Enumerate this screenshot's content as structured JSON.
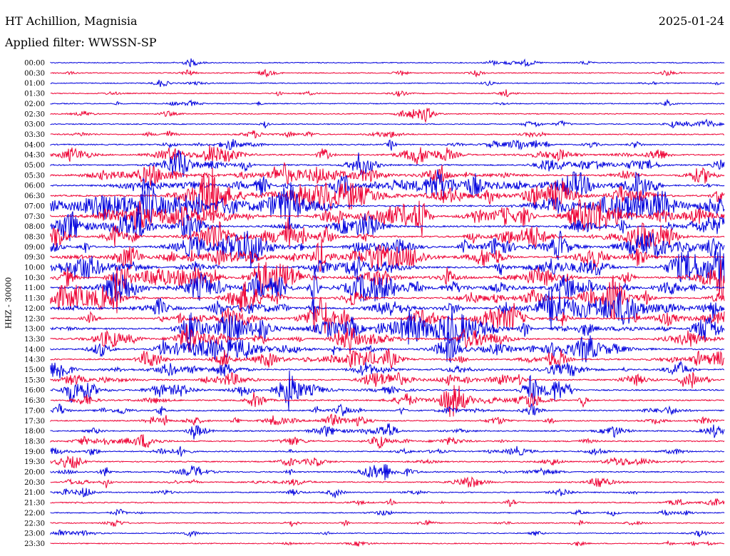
{
  "header": {
    "station": "HT Achillion, Magnisia",
    "date": "2025-01-24",
    "filter": "Applied filter: WWSSN-SP"
  },
  "chart_data": {
    "type": "line",
    "title": "HT Achillion, Magnisia",
    "date": "2025-01-24",
    "filter": "Applied filter: WWSSN-SP",
    "ylabel": "HHZ - 30000",
    "xlabel": "",
    "series_colors": [
      "#0000dd",
      "#ee0033"
    ],
    "tick_labels": [
      "00:00",
      "00:30",
      "01:00",
      "01:30",
      "02:00",
      "02:30",
      "03:00",
      "03:30",
      "04:00",
      "04:30",
      "05:00",
      "05:30",
      "06:00",
      "06:30",
      "07:00",
      "07:30",
      "08:00",
      "08:30",
      "09:00",
      "09:30",
      "10:00",
      "10:30",
      "11:00",
      "11:30",
      "12:00",
      "12:30",
      "13:00",
      "13:30",
      "14:00",
      "14:30",
      "15:00",
      "15:30",
      "16:00",
      "16:30",
      "17:00",
      "17:30",
      "18:00",
      "18:30",
      "19:00",
      "19:30",
      "20:00",
      "20:30",
      "21:00",
      "21:30",
      "22:00",
      "22:30",
      "23:00",
      "23:30"
    ],
    "activity": [
      0.05,
      0.06,
      0.07,
      0.05,
      0.07,
      0.06,
      0.09,
      0.2,
      0.3,
      0.45,
      0.45,
      0.55,
      0.65,
      0.7,
      0.75,
      0.75,
      0.7,
      0.75,
      0.75,
      0.7,
      0.75,
      0.7,
      0.75,
      0.7,
      0.75,
      0.7,
      0.7,
      0.65,
      0.6,
      0.55,
      0.5,
      0.5,
      0.45,
      0.4,
      0.35,
      0.3,
      0.3,
      0.3,
      0.25,
      0.25,
      0.3,
      0.25,
      0.2,
      0.15,
      0.1,
      0.1,
      0.07,
      0.06
    ]
  }
}
